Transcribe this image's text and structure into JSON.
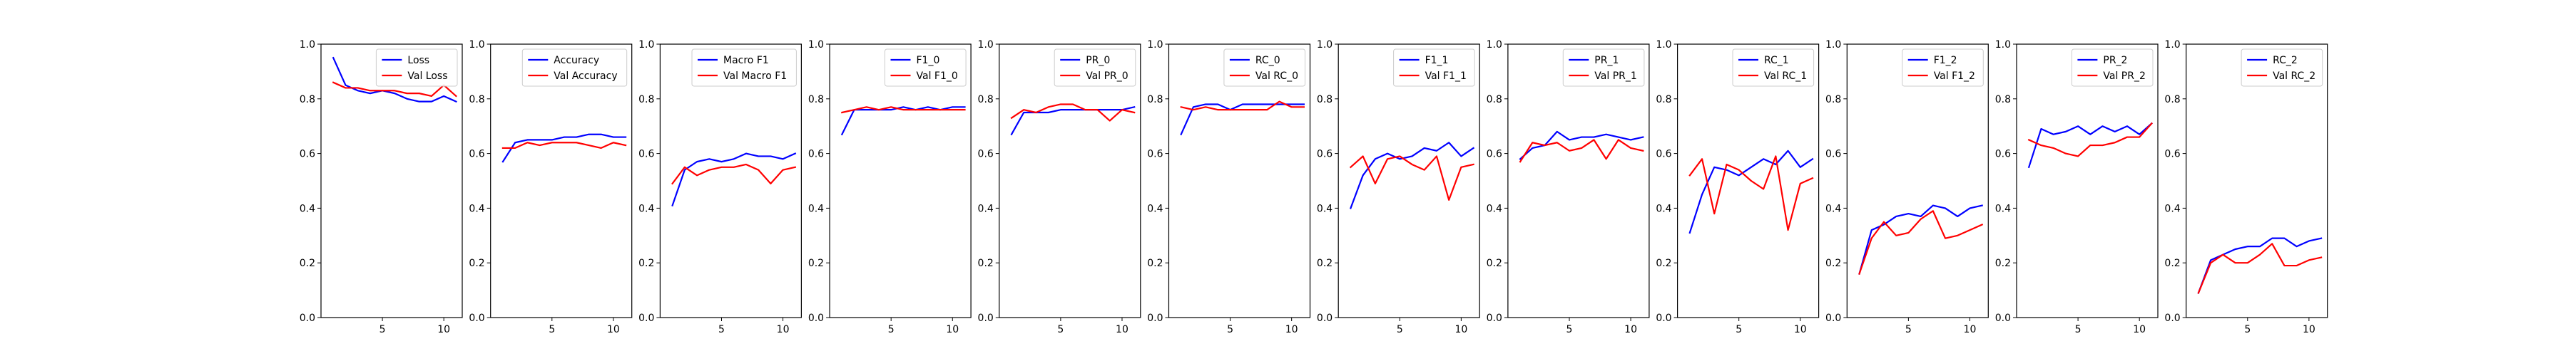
{
  "colors": {
    "train": "#0000ff",
    "val": "#ff0000",
    "axis": "#000000",
    "legend_border": "#cccccc"
  },
  "chart_data": [
    {
      "type": "line",
      "xlim": [
        0,
        11.5
      ],
      "ylim": [
        0,
        1.0
      ],
      "xticks": [
        "5",
        "10"
      ],
      "yticks": [
        "0.0",
        "0.2",
        "0.4",
        "0.6",
        "0.8",
        "1.0"
      ],
      "legend_loc": "upper right",
      "x": [
        1,
        2,
        3,
        4,
        5,
        6,
        7,
        8,
        9,
        10,
        11
      ],
      "series": [
        {
          "name": "Loss",
          "color": "#0000ff",
          "values": [
            0.95,
            0.85,
            0.83,
            0.82,
            0.83,
            0.82,
            0.8,
            0.79,
            0.79,
            0.81,
            0.79
          ]
        },
        {
          "name": "Val Loss",
          "color": "#ff0000",
          "values": [
            0.86,
            0.84,
            0.84,
            0.83,
            0.83,
            0.83,
            0.82,
            0.82,
            0.81,
            0.85,
            0.81
          ]
        }
      ]
    },
    {
      "type": "line",
      "xlim": [
        0,
        11.5
      ],
      "ylim": [
        0,
        1.0
      ],
      "xticks": [
        "5",
        "10"
      ],
      "yticks": [
        "0.0",
        "0.2",
        "0.4",
        "0.6",
        "0.8",
        "1.0"
      ],
      "legend_loc": "upper right",
      "x": [
        1,
        2,
        3,
        4,
        5,
        6,
        7,
        8,
        9,
        10,
        11
      ],
      "series": [
        {
          "name": "Accuracy",
          "color": "#0000ff",
          "values": [
            0.57,
            0.64,
            0.65,
            0.65,
            0.65,
            0.66,
            0.66,
            0.67,
            0.67,
            0.66,
            0.66
          ]
        },
        {
          "name": "Val Accuracy",
          "color": "#ff0000",
          "values": [
            0.62,
            0.62,
            0.64,
            0.63,
            0.64,
            0.64,
            0.64,
            0.63,
            0.62,
            0.64,
            0.63
          ]
        }
      ]
    },
    {
      "type": "line",
      "xlim": [
        0,
        11.5
      ],
      "ylim": [
        0,
        1.0
      ],
      "xticks": [
        "5",
        "10"
      ],
      "yticks": [
        "0.0",
        "0.2",
        "0.4",
        "0.6",
        "0.8",
        "1.0"
      ],
      "legend_loc": "upper right",
      "x": [
        1,
        2,
        3,
        4,
        5,
        6,
        7,
        8,
        9,
        10,
        11
      ],
      "series": [
        {
          "name": "Macro F1",
          "color": "#0000ff",
          "values": [
            0.41,
            0.54,
            0.57,
            0.58,
            0.57,
            0.58,
            0.6,
            0.59,
            0.59,
            0.58,
            0.6
          ]
        },
        {
          "name": "Val Macro F1",
          "color": "#ff0000",
          "values": [
            0.49,
            0.55,
            0.52,
            0.54,
            0.55,
            0.55,
            0.56,
            0.54,
            0.49,
            0.54,
            0.55
          ]
        }
      ]
    },
    {
      "type": "line",
      "xlim": [
        0,
        11.5
      ],
      "ylim": [
        0,
        1.0
      ],
      "xticks": [
        "5",
        "10"
      ],
      "yticks": [
        "0.0",
        "0.2",
        "0.4",
        "0.6",
        "0.8",
        "1.0"
      ],
      "legend_loc": "upper right",
      "x": [
        1,
        2,
        3,
        4,
        5,
        6,
        7,
        8,
        9,
        10,
        11
      ],
      "series": [
        {
          "name": "F1_0",
          "color": "#0000ff",
          "values": [
            0.67,
            0.76,
            0.76,
            0.76,
            0.76,
            0.77,
            0.76,
            0.77,
            0.76,
            0.77,
            0.77
          ]
        },
        {
          "name": "Val F1_0",
          "color": "#ff0000",
          "values": [
            0.75,
            0.76,
            0.77,
            0.76,
            0.77,
            0.76,
            0.76,
            0.76,
            0.76,
            0.76,
            0.76
          ]
        }
      ]
    },
    {
      "type": "line",
      "xlim": [
        0,
        11.5
      ],
      "ylim": [
        0,
        1.0
      ],
      "xticks": [
        "5",
        "10"
      ],
      "yticks": [
        "0.0",
        "0.2",
        "0.4",
        "0.6",
        "0.8",
        "1.0"
      ],
      "legend_loc": "upper right",
      "x": [
        1,
        2,
        3,
        4,
        5,
        6,
        7,
        8,
        9,
        10,
        11
      ],
      "series": [
        {
          "name": "PR_0",
          "color": "#0000ff",
          "values": [
            0.67,
            0.75,
            0.75,
            0.75,
            0.76,
            0.76,
            0.76,
            0.76,
            0.76,
            0.76,
            0.77
          ]
        },
        {
          "name": "Val PR_0",
          "color": "#ff0000",
          "values": [
            0.73,
            0.76,
            0.75,
            0.77,
            0.78,
            0.78,
            0.76,
            0.76,
            0.72,
            0.76,
            0.75
          ]
        }
      ]
    },
    {
      "type": "line",
      "xlim": [
        0,
        11.5
      ],
      "ylim": [
        0,
        1.0
      ],
      "xticks": [
        "5",
        "10"
      ],
      "yticks": [
        "0.0",
        "0.2",
        "0.4",
        "0.6",
        "0.8",
        "1.0"
      ],
      "legend_loc": "upper right",
      "x": [
        1,
        2,
        3,
        4,
        5,
        6,
        7,
        8,
        9,
        10,
        11
      ],
      "series": [
        {
          "name": "RC_0",
          "color": "#0000ff",
          "values": [
            0.67,
            0.77,
            0.78,
            0.78,
            0.76,
            0.78,
            0.78,
            0.78,
            0.78,
            0.78,
            0.78
          ]
        },
        {
          "name": "Val RC_0",
          "color": "#ff0000",
          "values": [
            0.77,
            0.76,
            0.77,
            0.76,
            0.76,
            0.76,
            0.76,
            0.76,
            0.79,
            0.77,
            0.77
          ]
        }
      ]
    },
    {
      "type": "line",
      "xlim": [
        0,
        11.5
      ],
      "ylim": [
        0,
        1.0
      ],
      "xticks": [
        "5",
        "10"
      ],
      "yticks": [
        "0.0",
        "0.2",
        "0.4",
        "0.6",
        "0.8",
        "1.0"
      ],
      "legend_loc": "upper right",
      "x": [
        1,
        2,
        3,
        4,
        5,
        6,
        7,
        8,
        9,
        10,
        11
      ],
      "series": [
        {
          "name": "F1_1",
          "color": "#0000ff",
          "values": [
            0.4,
            0.52,
            0.58,
            0.6,
            0.58,
            0.59,
            0.62,
            0.61,
            0.64,
            0.59,
            0.62
          ]
        },
        {
          "name": "Val F1_1",
          "color": "#ff0000",
          "values": [
            0.55,
            0.59,
            0.49,
            0.58,
            0.59,
            0.56,
            0.54,
            0.59,
            0.43,
            0.55,
            0.56
          ]
        }
      ]
    },
    {
      "type": "line",
      "xlim": [
        0,
        11.5
      ],
      "ylim": [
        0,
        1.0
      ],
      "xticks": [
        "5",
        "10"
      ],
      "yticks": [
        "0.0",
        "0.2",
        "0.4",
        "0.6",
        "0.8",
        "1.0"
      ],
      "legend_loc": "upper right",
      "x": [
        1,
        2,
        3,
        4,
        5,
        6,
        7,
        8,
        9,
        10,
        11
      ],
      "series": [
        {
          "name": "PR_1",
          "color": "#0000ff",
          "values": [
            0.58,
            0.62,
            0.63,
            0.68,
            0.65,
            0.66,
            0.66,
            0.67,
            0.66,
            0.65,
            0.66
          ]
        },
        {
          "name": "Val PR_1",
          "color": "#ff0000",
          "values": [
            0.57,
            0.64,
            0.63,
            0.64,
            0.61,
            0.62,
            0.65,
            0.58,
            0.65,
            0.62,
            0.61
          ]
        }
      ]
    },
    {
      "type": "line",
      "xlim": [
        0,
        11.5
      ],
      "ylim": [
        0,
        1.0
      ],
      "xticks": [
        "5",
        "10"
      ],
      "yticks": [
        "0.0",
        "0.2",
        "0.4",
        "0.6",
        "0.8",
        "1.0"
      ],
      "legend_loc": "upper right",
      "x": [
        1,
        2,
        3,
        4,
        5,
        6,
        7,
        8,
        9,
        10,
        11
      ],
      "series": [
        {
          "name": "RC_1",
          "color": "#0000ff",
          "values": [
            0.31,
            0.45,
            0.55,
            0.54,
            0.52,
            0.55,
            0.58,
            0.56,
            0.61,
            0.55,
            0.58
          ]
        },
        {
          "name": "Val RC_1",
          "color": "#ff0000",
          "values": [
            0.52,
            0.58,
            0.38,
            0.56,
            0.54,
            0.5,
            0.47,
            0.59,
            0.32,
            0.49,
            0.51
          ]
        }
      ]
    },
    {
      "type": "line",
      "xlim": [
        0,
        11.5
      ],
      "ylim": [
        0,
        1.0
      ],
      "xticks": [
        "5",
        "10"
      ],
      "yticks": [
        "0.0",
        "0.2",
        "0.4",
        "0.6",
        "0.8",
        "1.0"
      ],
      "legend_loc": "upper right",
      "x": [
        1,
        2,
        3,
        4,
        5,
        6,
        7,
        8,
        9,
        10,
        11
      ],
      "series": [
        {
          "name": "F1_2",
          "color": "#0000ff",
          "values": [
            0.16,
            0.32,
            0.34,
            0.37,
            0.38,
            0.37,
            0.41,
            0.4,
            0.37,
            0.4,
            0.41
          ]
        },
        {
          "name": "Val F1_2",
          "color": "#ff0000",
          "values": [
            0.16,
            0.29,
            0.35,
            0.3,
            0.31,
            0.36,
            0.39,
            0.29,
            0.3,
            0.32,
            0.34
          ]
        }
      ]
    },
    {
      "type": "line",
      "xlim": [
        0,
        11.5
      ],
      "ylim": [
        0,
        1.0
      ],
      "xticks": [
        "5",
        "10"
      ],
      "yticks": [
        "0.0",
        "0.2",
        "0.4",
        "0.6",
        "0.8",
        "1.0"
      ],
      "legend_loc": "upper right",
      "x": [
        1,
        2,
        3,
        4,
        5,
        6,
        7,
        8,
        9,
        10,
        11
      ],
      "series": [
        {
          "name": "PR_2",
          "color": "#0000ff",
          "values": [
            0.55,
            0.69,
            0.67,
            0.68,
            0.7,
            0.67,
            0.7,
            0.68,
            0.7,
            0.67,
            0.71
          ]
        },
        {
          "name": "Val PR_2",
          "color": "#ff0000",
          "values": [
            0.65,
            0.63,
            0.62,
            0.6,
            0.59,
            0.63,
            0.63,
            0.64,
            0.66,
            0.66,
            0.71
          ]
        }
      ]
    },
    {
      "type": "line",
      "xlim": [
        0,
        11.5
      ],
      "ylim": [
        0,
        1.0
      ],
      "xticks": [
        "5",
        "10"
      ],
      "yticks": [
        "0.0",
        "0.2",
        "0.4",
        "0.6",
        "0.8",
        "1.0"
      ],
      "legend_loc": "upper right",
      "x": [
        1,
        2,
        3,
        4,
        5,
        6,
        7,
        8,
        9,
        10,
        11
      ],
      "series": [
        {
          "name": "RC_2",
          "color": "#0000ff",
          "values": [
            0.09,
            0.21,
            0.23,
            0.25,
            0.26,
            0.26,
            0.29,
            0.29,
            0.26,
            0.28,
            0.29
          ]
        },
        {
          "name": "Val RC_2",
          "color": "#ff0000",
          "values": [
            0.09,
            0.2,
            0.23,
            0.2,
            0.2,
            0.23,
            0.27,
            0.19,
            0.19,
            0.21,
            0.22
          ]
        }
      ]
    }
  ]
}
